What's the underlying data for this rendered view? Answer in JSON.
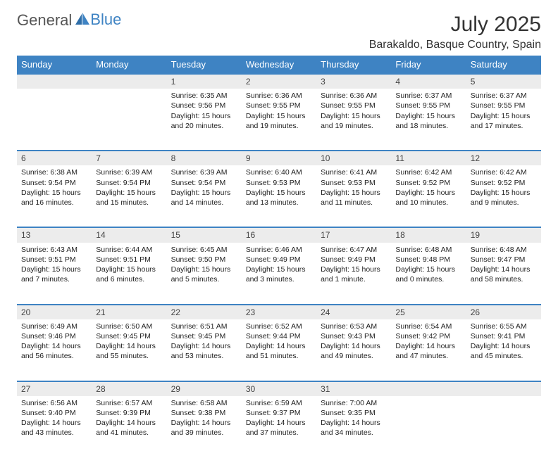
{
  "brand": {
    "word1": "General",
    "word2": "Blue"
  },
  "title": "July 2025",
  "location": "Barakaldo, Basque Country, Spain",
  "colors": {
    "header_bg": "#3e83c3",
    "header_text": "#ffffff",
    "daynum_bg": "#ececec",
    "rule": "#3e83c3",
    "brand_gray": "#555555",
    "brand_blue": "#3e83c3"
  },
  "weekdays": [
    "Sunday",
    "Monday",
    "Tuesday",
    "Wednesday",
    "Thursday",
    "Friday",
    "Saturday"
  ],
  "weeks": [
    [
      null,
      null,
      {
        "n": "1",
        "sunrise": "6:35 AM",
        "sunset": "9:56 PM",
        "daylight": "15 hours and 20 minutes."
      },
      {
        "n": "2",
        "sunrise": "6:36 AM",
        "sunset": "9:55 PM",
        "daylight": "15 hours and 19 minutes."
      },
      {
        "n": "3",
        "sunrise": "6:36 AM",
        "sunset": "9:55 PM",
        "daylight": "15 hours and 19 minutes."
      },
      {
        "n": "4",
        "sunrise": "6:37 AM",
        "sunset": "9:55 PM",
        "daylight": "15 hours and 18 minutes."
      },
      {
        "n": "5",
        "sunrise": "6:37 AM",
        "sunset": "9:55 PM",
        "daylight": "15 hours and 17 minutes."
      }
    ],
    [
      {
        "n": "6",
        "sunrise": "6:38 AM",
        "sunset": "9:54 PM",
        "daylight": "15 hours and 16 minutes."
      },
      {
        "n": "7",
        "sunrise": "6:39 AM",
        "sunset": "9:54 PM",
        "daylight": "15 hours and 15 minutes."
      },
      {
        "n": "8",
        "sunrise": "6:39 AM",
        "sunset": "9:54 PM",
        "daylight": "15 hours and 14 minutes."
      },
      {
        "n": "9",
        "sunrise": "6:40 AM",
        "sunset": "9:53 PM",
        "daylight": "15 hours and 13 minutes."
      },
      {
        "n": "10",
        "sunrise": "6:41 AM",
        "sunset": "9:53 PM",
        "daylight": "15 hours and 11 minutes."
      },
      {
        "n": "11",
        "sunrise": "6:42 AM",
        "sunset": "9:52 PM",
        "daylight": "15 hours and 10 minutes."
      },
      {
        "n": "12",
        "sunrise": "6:42 AM",
        "sunset": "9:52 PM",
        "daylight": "15 hours and 9 minutes."
      }
    ],
    [
      {
        "n": "13",
        "sunrise": "6:43 AM",
        "sunset": "9:51 PM",
        "daylight": "15 hours and 7 minutes."
      },
      {
        "n": "14",
        "sunrise": "6:44 AM",
        "sunset": "9:51 PM",
        "daylight": "15 hours and 6 minutes."
      },
      {
        "n": "15",
        "sunrise": "6:45 AM",
        "sunset": "9:50 PM",
        "daylight": "15 hours and 5 minutes."
      },
      {
        "n": "16",
        "sunrise": "6:46 AM",
        "sunset": "9:49 PM",
        "daylight": "15 hours and 3 minutes."
      },
      {
        "n": "17",
        "sunrise": "6:47 AM",
        "sunset": "9:49 PM",
        "daylight": "15 hours and 1 minute."
      },
      {
        "n": "18",
        "sunrise": "6:48 AM",
        "sunset": "9:48 PM",
        "daylight": "15 hours and 0 minutes."
      },
      {
        "n": "19",
        "sunrise": "6:48 AM",
        "sunset": "9:47 PM",
        "daylight": "14 hours and 58 minutes."
      }
    ],
    [
      {
        "n": "20",
        "sunrise": "6:49 AM",
        "sunset": "9:46 PM",
        "daylight": "14 hours and 56 minutes."
      },
      {
        "n": "21",
        "sunrise": "6:50 AM",
        "sunset": "9:45 PM",
        "daylight": "14 hours and 55 minutes."
      },
      {
        "n": "22",
        "sunrise": "6:51 AM",
        "sunset": "9:45 PM",
        "daylight": "14 hours and 53 minutes."
      },
      {
        "n": "23",
        "sunrise": "6:52 AM",
        "sunset": "9:44 PM",
        "daylight": "14 hours and 51 minutes."
      },
      {
        "n": "24",
        "sunrise": "6:53 AM",
        "sunset": "9:43 PM",
        "daylight": "14 hours and 49 minutes."
      },
      {
        "n": "25",
        "sunrise": "6:54 AM",
        "sunset": "9:42 PM",
        "daylight": "14 hours and 47 minutes."
      },
      {
        "n": "26",
        "sunrise": "6:55 AM",
        "sunset": "9:41 PM",
        "daylight": "14 hours and 45 minutes."
      }
    ],
    [
      {
        "n": "27",
        "sunrise": "6:56 AM",
        "sunset": "9:40 PM",
        "daylight": "14 hours and 43 minutes."
      },
      {
        "n": "28",
        "sunrise": "6:57 AM",
        "sunset": "9:39 PM",
        "daylight": "14 hours and 41 minutes."
      },
      {
        "n": "29",
        "sunrise": "6:58 AM",
        "sunset": "9:38 PM",
        "daylight": "14 hours and 39 minutes."
      },
      {
        "n": "30",
        "sunrise": "6:59 AM",
        "sunset": "9:37 PM",
        "daylight": "14 hours and 37 minutes."
      },
      {
        "n": "31",
        "sunrise": "7:00 AM",
        "sunset": "9:35 PM",
        "daylight": "14 hours and 34 minutes."
      },
      null,
      null
    ]
  ],
  "labels": {
    "sunrise_prefix": "Sunrise: ",
    "sunset_prefix": "Sunset: ",
    "daylight_prefix": "Daylight: "
  }
}
